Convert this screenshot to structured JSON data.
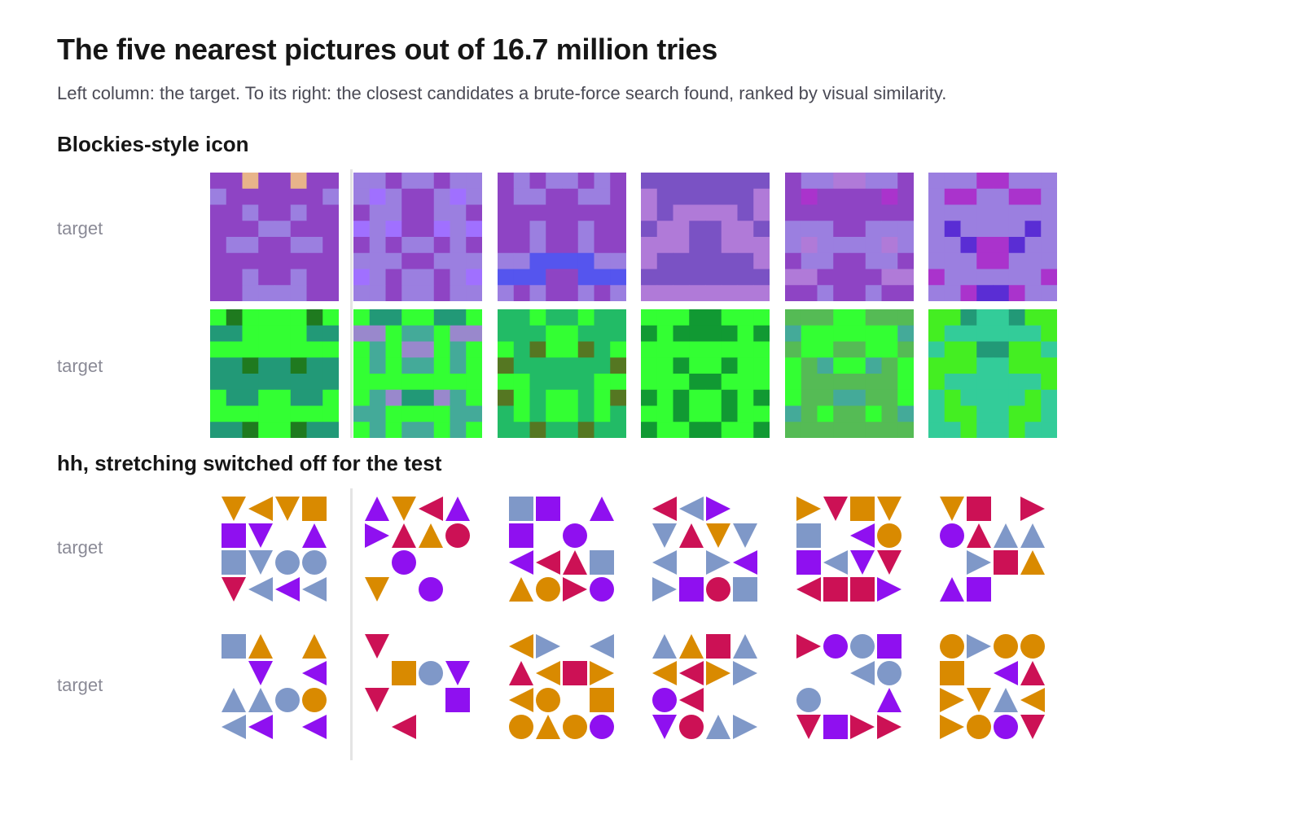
{
  "header": {
    "title": "The five nearest pictures out of 16.7 million tries",
    "subtitle": "Left column: the target. To its right: the closest candidates a brute-force search found, ranked by visual similarity."
  },
  "sections": [
    {
      "title": "Blockies-style icon",
      "rows": [
        {
          "label": "target"
        },
        {
          "label": "target"
        }
      ]
    },
    {
      "title": "hh, stretching switched off for the test",
      "rows": [
        {
          "label": "target"
        },
        {
          "label": "target"
        }
      ]
    }
  ],
  "colors": {
    "purple_family": [
      "#8e44c4",
      "#9b7fe0",
      "#a070ff",
      "#5555ee",
      "#e8b48a",
      "#7a52c4",
      "#b07ad8",
      "#5a2dd4",
      "#aa33cc"
    ],
    "green_family": [
      "#33ff33",
      "#229977",
      "#1f7a1f",
      "#44aa99",
      "#9988cc",
      "#22bb66",
      "#557722",
      "#119933",
      "#55bb55",
      "#33cc99",
      "#44ee22"
    ],
    "shape_purple": "#8f10f0",
    "shape_blue": "#7f98c8",
    "shape_red": "#cc1155",
    "shape_orange": "#d98a00"
  }
}
